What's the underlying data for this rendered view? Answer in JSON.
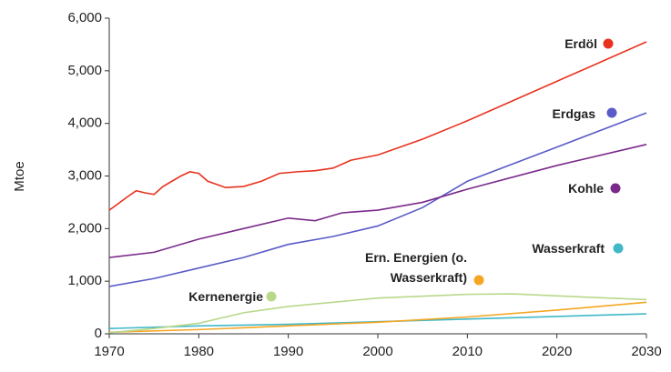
{
  "chart_data": {
    "type": "line",
    "y_label": "Mtoe",
    "xlim": [
      1970,
      2030
    ],
    "xticks": [
      1970,
      1980,
      1990,
      2000,
      2010,
      2020,
      2030
    ],
    "ylim": [
      0,
      6000
    ],
    "yticks": [
      {
        "value": 0,
        "label": "0"
      },
      {
        "value": 1000,
        "label": "1,000"
      },
      {
        "value": 2000,
        "label": "2,000"
      },
      {
        "value": 3000,
        "label": "3,000"
      },
      {
        "value": 4000,
        "label": "4,000"
      },
      {
        "value": 5000,
        "label": "5,000"
      },
      {
        "value": 6000,
        "label": "6,000"
      }
    ],
    "grid": false,
    "series": [
      {
        "name": "Erdöl",
        "color": "#e8321e",
        "x": [
          1970,
          1972,
          1973,
          1974,
          1975,
          1976,
          1978,
          1979,
          1980,
          1981,
          1983,
          1985,
          1987,
          1989,
          1991,
          1993,
          1995,
          1997,
          2000,
          2005,
          2010,
          2020,
          2030
        ],
        "values": [
          2350,
          2600,
          2720,
          2680,
          2650,
          2800,
          3000,
          3080,
          3050,
          2900,
          2780,
          2800,
          2900,
          3050,
          3080,
          3100,
          3150,
          3300,
          3400,
          3700,
          4050,
          4800,
          5550
        ]
      },
      {
        "name": "Erdgas",
        "color": "#5a5ac8",
        "x": [
          1970,
          1975,
          1980,
          1985,
          1990,
          1995,
          2000,
          2005,
          2010,
          2020,
          2030
        ],
        "values": [
          900,
          1050,
          1250,
          1450,
          1700,
          1850,
          2050,
          2400,
          2900,
          3550,
          4200
        ]
      },
      {
        "name": "Kohle",
        "color": "#7a2a8a",
        "x": [
          1970,
          1975,
          1980,
          1985,
          1990,
          1993,
          1996,
          2000,
          2005,
          2010,
          2020,
          2030
        ],
        "values": [
          1450,
          1550,
          1800,
          2000,
          2200,
          2150,
          2300,
          2350,
          2500,
          2750,
          3200,
          3600
        ]
      },
      {
        "name": "Wasserkraft",
        "color": "#40b8c8",
        "x": [
          1970,
          1980,
          1990,
          2000,
          2010,
          2020,
          2030
        ],
        "values": [
          100,
          150,
          180,
          230,
          280,
          330,
          380
        ]
      },
      {
        "name": "Ern. Energien (o. Wasserkraft)",
        "color": "#f5a623",
        "x": [
          1970,
          1980,
          1990,
          2000,
          2010,
          2020,
          2030
        ],
        "values": [
          30,
          80,
          150,
          220,
          320,
          450,
          600
        ]
      },
      {
        "name": "Kernenergie",
        "color": "#b8d88a",
        "x": [
          1970,
          1975,
          1980,
          1985,
          1990,
          2000,
          2010,
          2015,
          2020,
          2030
        ],
        "values": [
          20,
          100,
          200,
          400,
          520,
          680,
          750,
          760,
          720,
          650
        ]
      }
    ]
  }
}
